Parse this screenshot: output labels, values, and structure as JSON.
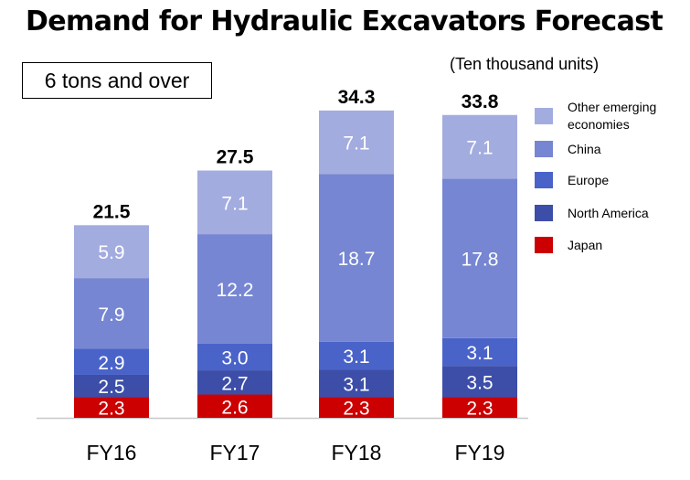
{
  "chart_data": {
    "type": "bar",
    "stacked": true,
    "title": "Demand for Hydraulic Excavators Forecast",
    "unit_label": "(Ten thousand units)",
    "subtitle_box": "6 tons and over",
    "categories": [
      "FY16",
      "FY17",
      "FY18",
      "FY19"
    ],
    "totals": [
      "21.5",
      "27.5",
      "34.3",
      "33.8"
    ],
    "series": [
      {
        "name": "Japan",
        "color": "#cc0000",
        "values": [
          2.3,
          2.6,
          2.3,
          2.3
        ]
      },
      {
        "name": "North America",
        "color": "#3c4ea8",
        "values": [
          2.5,
          2.7,
          3.1,
          3.5
        ]
      },
      {
        "name": "Europe",
        "color": "#4a63c9",
        "values": [
          2.9,
          3.0,
          3.1,
          3.1
        ]
      },
      {
        "name": "China",
        "color": "#7686d3",
        "values": [
          7.9,
          12.2,
          18.7,
          17.8
        ]
      },
      {
        "name": "Other emerging economies",
        "color": "#a3acdf",
        "values": [
          5.9,
          7.1,
          7.1,
          7.1
        ]
      }
    ],
    "legend_position": "right",
    "grid": false
  }
}
